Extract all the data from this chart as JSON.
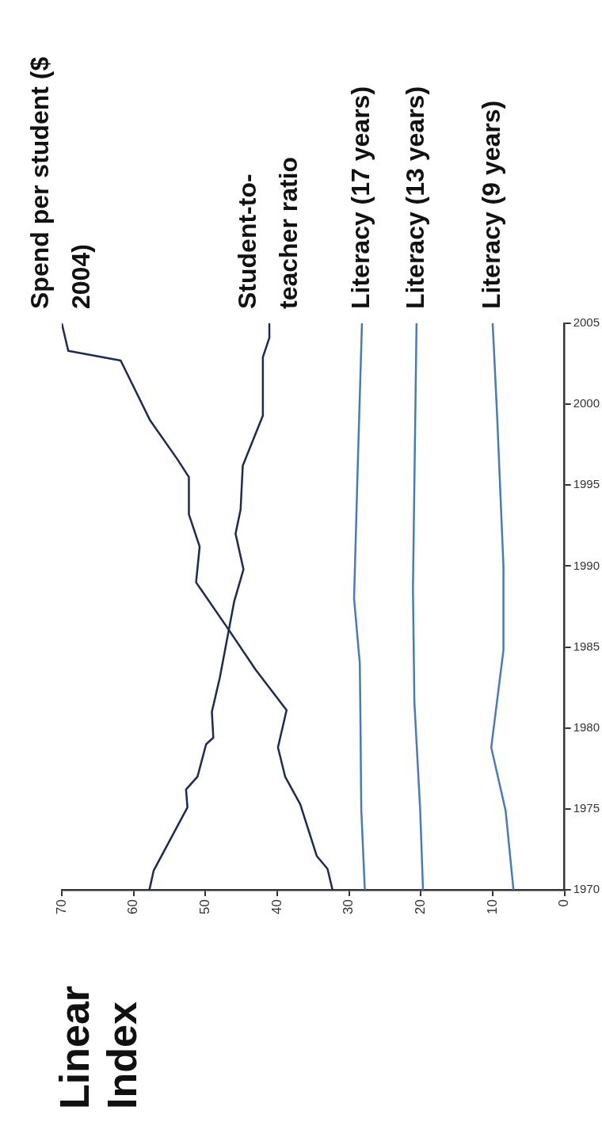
{
  "chart_data": {
    "type": "line",
    "title": "Linear Index",
    "xlim": [
      70,
      0
    ],
    "xticks": [
      0,
      10,
      20,
      30,
      40,
      50,
      60,
      70
    ],
    "ylim": [
      1970,
      2005
    ],
    "yticks": [
      1970,
      1975,
      1980,
      1985,
      1990,
      1995,
      2000,
      2005
    ],
    "grid": false,
    "legend": false,
    "marker": "none",
    "line_style": "solid",
    "series": [
      {
        "name": "Spend per student ($ 2004)",
        "color": "#1b2b52",
        "values": [
          1970,
          1971.3,
          1972.1,
          1975.3,
          1977,
          1978.8,
          1981.1,
          1983.6,
          1986.1,
          1989,
          1991.2,
          1993.2,
          1995.5,
          1996.6,
          1999,
          2002.7,
          2003.3,
          2005
        ],
        "x": [
          32.3,
          33,
          34.5,
          36.8,
          38.9,
          39.9,
          38.7,
          43,
          46.8,
          51.3,
          50.8,
          52.3,
          52.3,
          53.9,
          57.7,
          61.8,
          69.1,
          70
        ]
      },
      {
        "name": "Student-to-teacher ratio",
        "color": "#1b2b52",
        "values": [
          1970,
          1971.2,
          1975.1,
          1976.2,
          1977,
          1979,
          1979.4,
          1981,
          1983.1,
          1987.8,
          1989.8,
          1992,
          1993.5,
          1996.2,
          1999.3,
          2002.9,
          2004.1,
          2005
        ],
        "x": [
          57.8,
          57.2,
          52.5,
          52.7,
          51.1,
          49.9,
          48.9,
          49.1,
          48,
          46,
          44.7,
          45.8,
          45.1,
          44.8,
          42,
          42,
          41.1,
          41.1
        ]
      },
      {
        "name": "Literacy (17 years)",
        "color": "#4a7bb2",
        "values": [
          1970,
          1975,
          1980,
          1984,
          1988,
          1996,
          2005
        ],
        "x": [
          27.8,
          28.3,
          28.4,
          28.5,
          29.3,
          28.8,
          28.2
        ]
      },
      {
        "name": "Literacy (13 years)",
        "color": "#4a7bb2",
        "values": [
          1970,
          1975,
          1981.6,
          1988.6,
          2005
        ],
        "x": [
          19.7,
          20.1,
          20.9,
          21.1,
          20.6
        ]
      },
      {
        "name": "Literacy (9 years)",
        "color": "#4a7bb2",
        "values": [
          1970,
          1974.9,
          1978.8,
          1984.8,
          1990,
          1999.5,
          2005
        ],
        "x": [
          7.1,
          8.2,
          10.2,
          8.5,
          8.5,
          9.4,
          10
        ]
      }
    ]
  }
}
